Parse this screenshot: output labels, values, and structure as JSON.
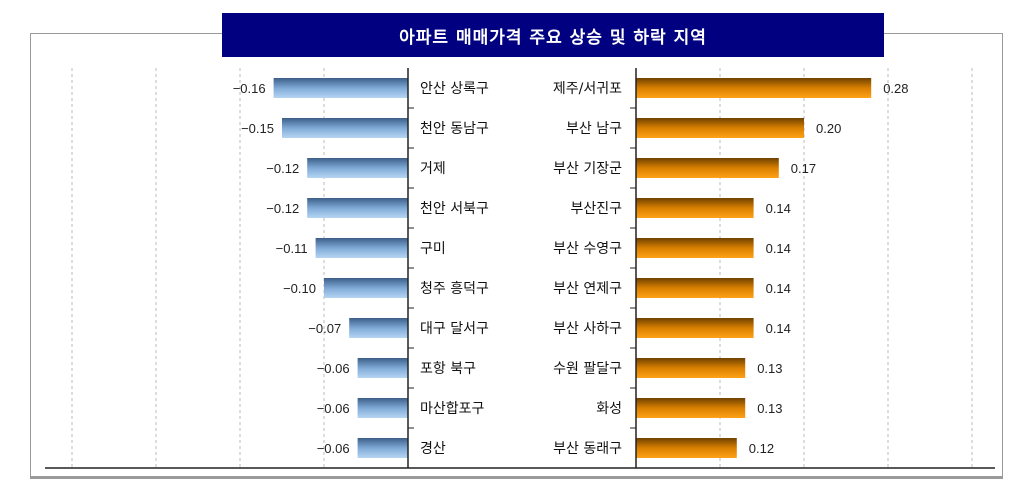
{
  "chart_data": [
    {
      "type": "bar",
      "orientation": "horizontal",
      "title": "아파트 매매가격 주요 상승 및 하락 지역",
      "categories": [
        "안산 상록구",
        "천안 동남구",
        "거제",
        "천안 서북구",
        "구미",
        "청주 흥덕구",
        "대구 달서구",
        "포항 북구",
        "마산합포구",
        "경산"
      ],
      "values": [
        -0.16,
        -0.15,
        -0.12,
        -0.12,
        -0.11,
        -0.1,
        -0.07,
        -0.06,
        -0.06,
        -0.06
      ],
      "color": "#5b8cc4",
      "xlim": [
        -0.4,
        0
      ],
      "grid": true
    },
    {
      "type": "bar",
      "orientation": "horizontal",
      "categories": [
        "제주/서귀포",
        "부산 남구",
        "부산 기장군",
        "부산진구",
        "부산 수영구",
        "부산 연제구",
        "부산 사하구",
        "수원 팔달구",
        "화성",
        "부산 동래구"
      ],
      "values": [
        0.28,
        0.2,
        0.17,
        0.14,
        0.14,
        0.14,
        0.14,
        0.13,
        0.13,
        0.12
      ],
      "color": "#f0900a",
      "xlim": [
        0,
        0.4
      ],
      "grid": true
    }
  ]
}
